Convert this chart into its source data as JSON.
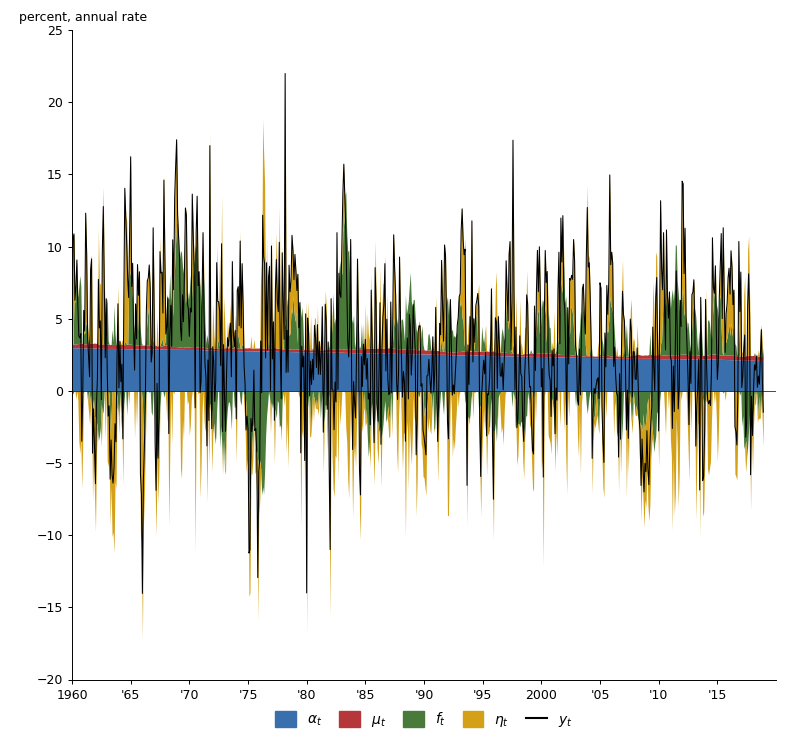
{
  "ylabel": "percent, annual rate",
  "xlim": [
    1960.0,
    2020.0
  ],
  "ylim": [
    -20,
    25
  ],
  "yticks": [
    -20,
    -15,
    -10,
    -5,
    0,
    5,
    10,
    15,
    20,
    25
  ],
  "xtick_years": [
    1960,
    1965,
    1970,
    1975,
    1980,
    1985,
    1990,
    1995,
    2000,
    2005,
    2010,
    2015
  ],
  "xtick_labels": [
    "1960",
    "'65",
    "'70",
    "'75",
    "'80",
    "'85",
    "'90",
    "'95",
    "2000",
    "'05",
    "'10",
    "'15"
  ],
  "alpha_color": "#3A6FAD",
  "mu_color": "#B5373A",
  "f_color": "#4A7A3A",
  "eta_color": "#D4A017",
  "y_color": "#000000",
  "background_color": "#ffffff",
  "n_months": 708
}
